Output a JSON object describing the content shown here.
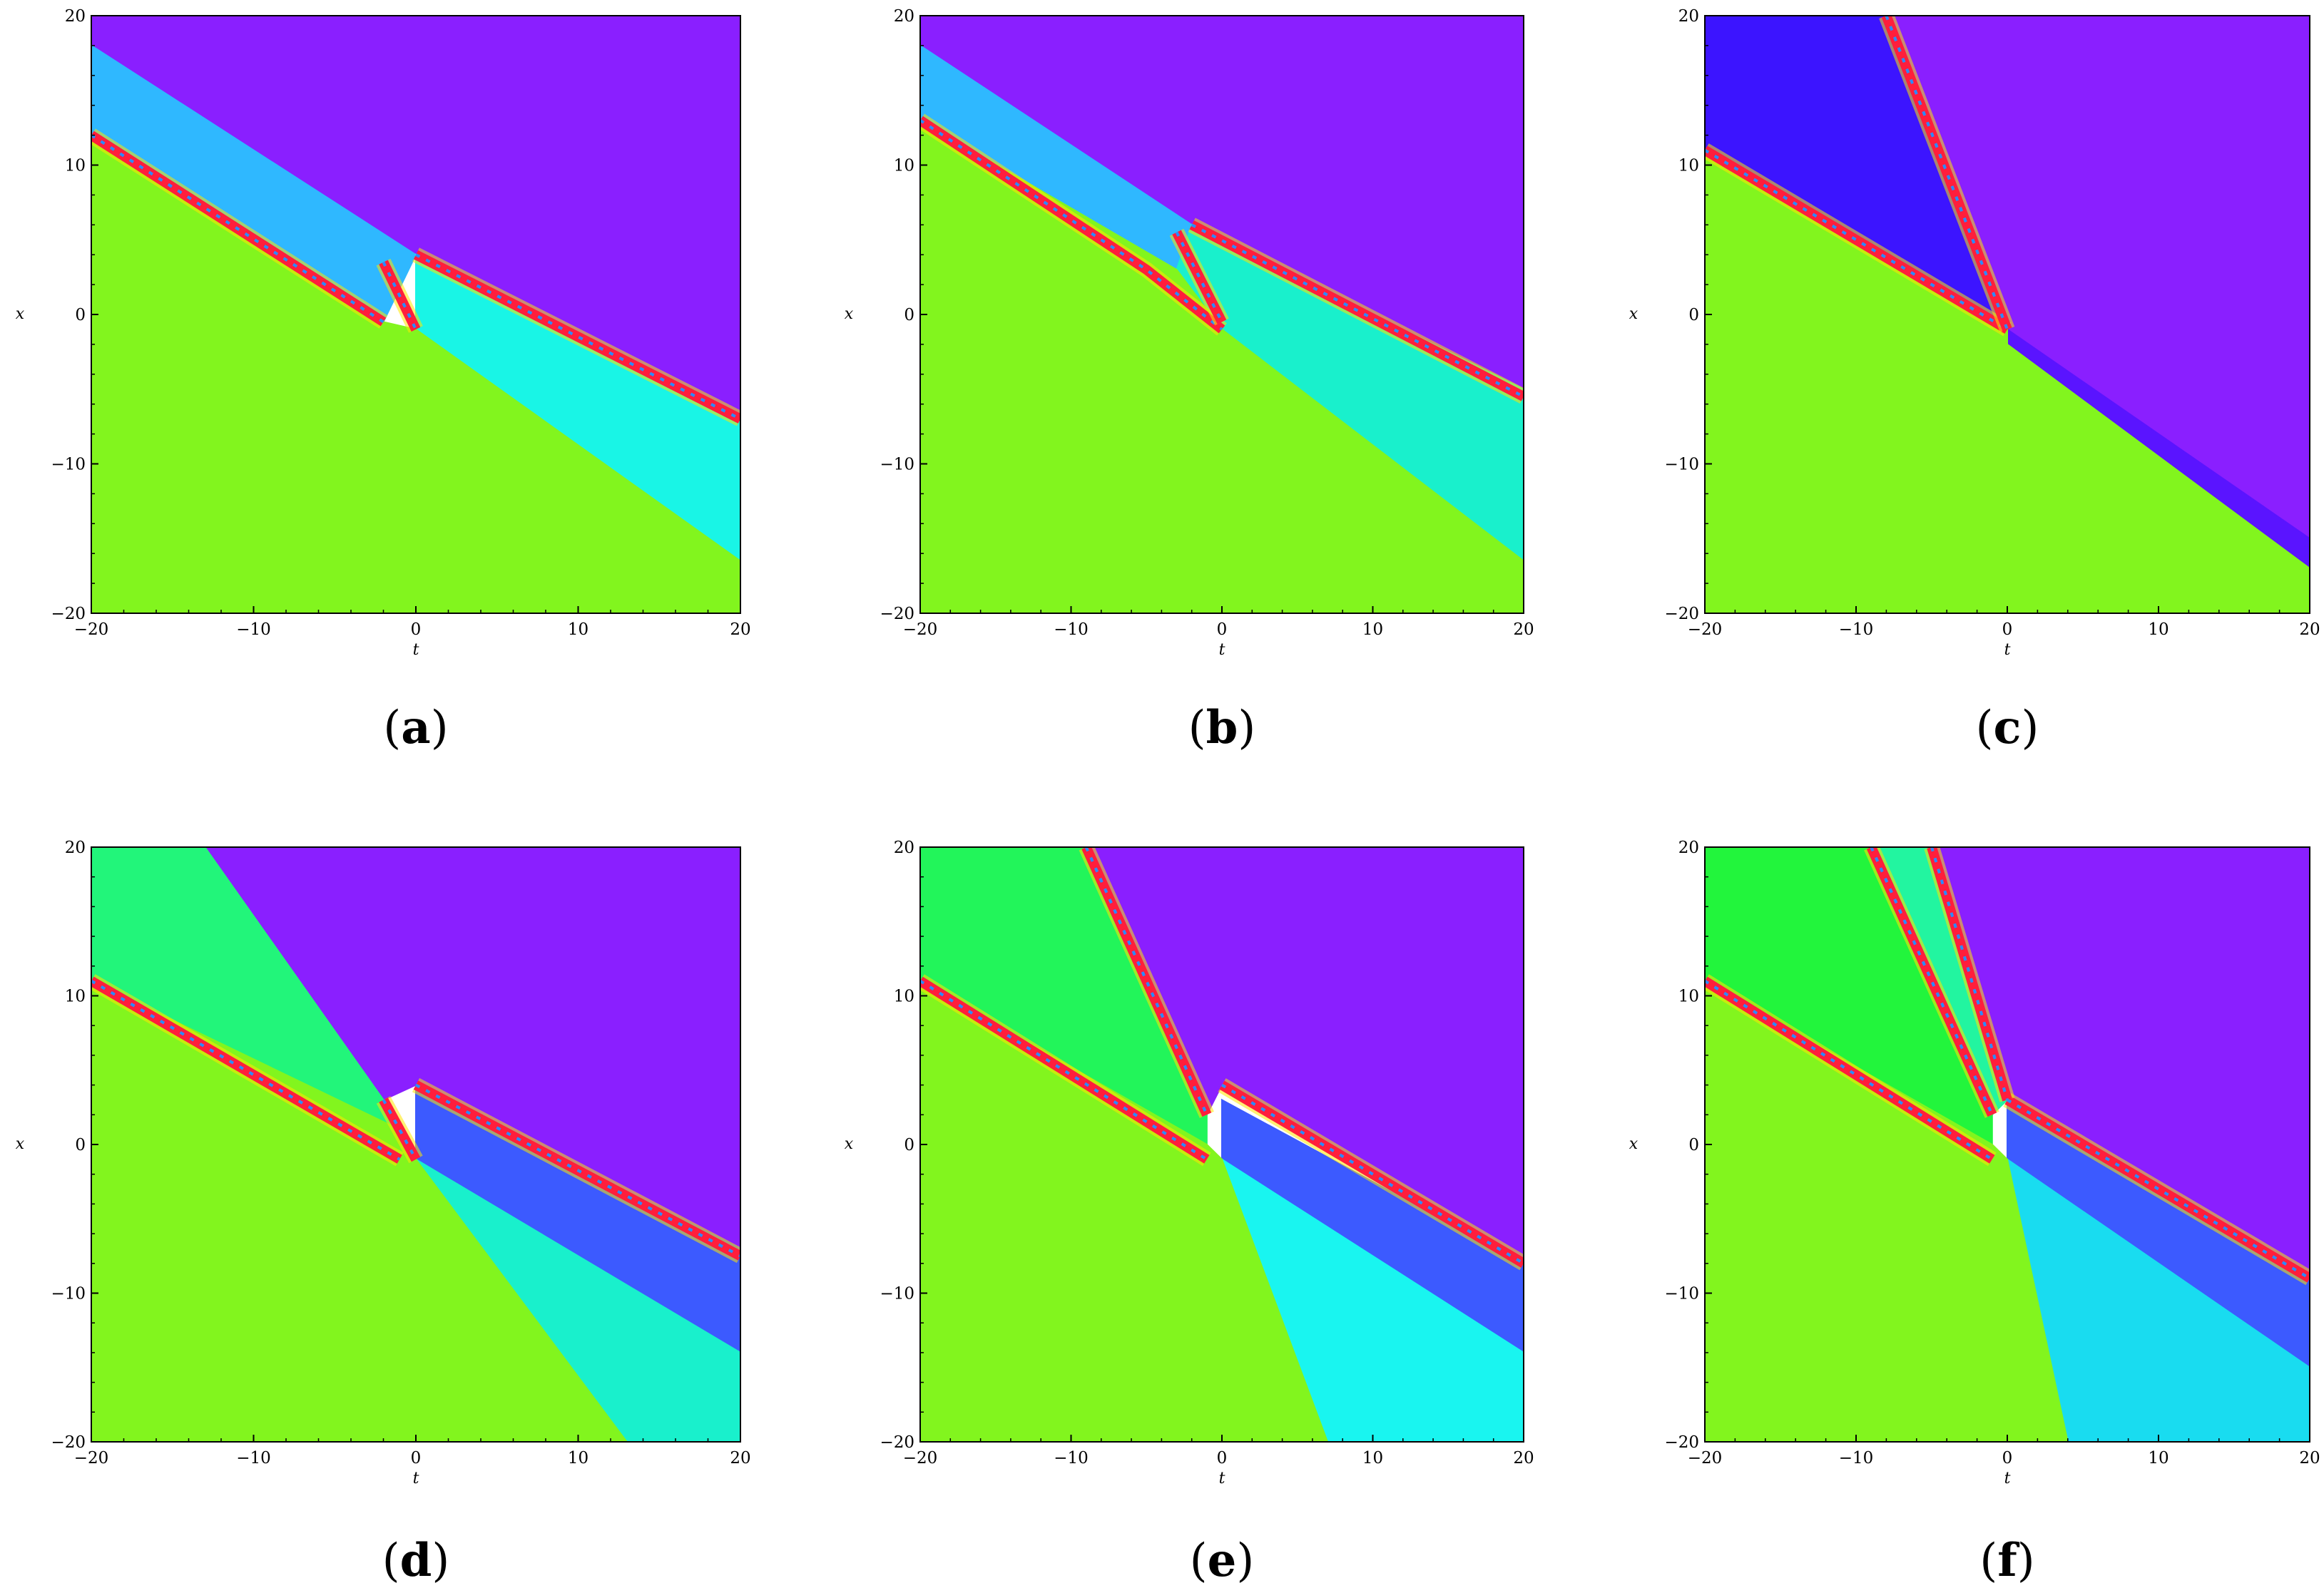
{
  "chart_data": [
    {
      "type": "heatmap",
      "caption": "(a)",
      "caption_letter": "a",
      "xlabel": "t",
      "ylabel": "x",
      "xlim": [
        -20,
        20
      ],
      "ylim": [
        -20,
        20
      ],
      "xticks": [
        "−20",
        "−10",
        "0",
        "10",
        "20"
      ],
      "yticks": [
        "20",
        "10",
        "0",
        "−10",
        "−20"
      ],
      "regions": [
        {
          "name": "violet",
          "color": "#8a1fff",
          "poly": [
            [
              -20,
              20
            ],
            [
              20,
              20
            ],
            [
              20,
              -7
            ],
            [
              0,
              4
            ],
            [
              -20,
              18
            ]
          ]
        },
        {
          "name": "blue-cyan",
          "color": "#2fb8ff",
          "poly": [
            [
              -20,
              18
            ],
            [
              0,
              4
            ],
            [
              -2,
              -0.5
            ],
            [
              -20,
              12
            ]
          ]
        },
        {
          "name": "cyan",
          "color": "#19f5e6",
          "poly": [
            [
              0,
              4
            ],
            [
              20,
              -7
            ],
            [
              20,
              -16.5
            ],
            [
              0,
              -1
            ]
          ]
        },
        {
          "name": "green",
          "color": "#82f51e",
          "poly": [
            [
              -20,
              12
            ],
            [
              -2,
              -0.5
            ],
            [
              0,
              -1
            ],
            [
              20,
              -16.5
            ],
            [
              20,
              -20
            ],
            [
              -20,
              -20
            ]
          ]
        }
      ],
      "boundaries": [
        {
          "color": "#ff1e3c",
          "points": [
            [
              -20,
              12
            ],
            [
              -2,
              -0.5
            ]
          ]
        },
        {
          "color": "#ff1e3c",
          "points": [
            [
              0,
              4
            ],
            [
              20,
              -7
            ]
          ]
        },
        {
          "color": "#ff1e3c",
          "points": [
            [
              -2,
              3.5
            ],
            [
              0,
              -1
            ]
          ]
        }
      ]
    },
    {
      "type": "heatmap",
      "caption": "(b)",
      "caption_letter": "b",
      "xlabel": "t",
      "ylabel": "x",
      "xlim": [
        -20,
        20
      ],
      "ylim": [
        -20,
        20
      ],
      "xticks": [
        "−20",
        "−10",
        "0",
        "10",
        "20"
      ],
      "yticks": [
        "20",
        "10",
        "0",
        "−10",
        "−20"
      ],
      "regions": [
        {
          "name": "violet",
          "color": "#8a1fff",
          "poly": [
            [
              -20,
              20
            ],
            [
              20,
              20
            ],
            [
              20,
              -5
            ],
            [
              -2,
              6
            ],
            [
              -20,
              18
            ]
          ]
        },
        {
          "name": "blue-cyan",
          "color": "#2fb8ff",
          "poly": [
            [
              -20,
              18
            ],
            [
              -2,
              6
            ],
            [
              -3,
              3
            ],
            [
              -20,
              13
            ]
          ]
        },
        {
          "name": "cyan",
          "color": "#19f0cc",
          "poly": [
            [
              -2,
              6
            ],
            [
              20,
              -5
            ],
            [
              20,
              -16.5
            ],
            [
              0,
              -1
            ],
            [
              -3,
              3
            ]
          ]
        },
        {
          "name": "green",
          "color": "#82f51e",
          "poly": [
            [
              -20,
              13
            ],
            [
              -3,
              3
            ],
            [
              0,
              -1
            ],
            [
              20,
              -16.5
            ],
            [
              20,
              -20
            ],
            [
              -20,
              -20
            ]
          ]
        }
      ],
      "boundaries": [
        {
          "color": "#ff1e3c",
          "points": [
            [
              -20,
              13
            ],
            [
              -5,
              3
            ],
            [
              0,
              -1
            ]
          ]
        },
        {
          "color": "#ff1e3c",
          "points": [
            [
              -2,
              6
            ],
            [
              20,
              -5.5
            ]
          ]
        },
        {
          "color": "#ff1e3c",
          "points": [
            [
              -3,
              5.5
            ],
            [
              0,
              -0.5
            ]
          ]
        }
      ]
    },
    {
      "type": "heatmap",
      "caption": "(c)",
      "caption_letter": "c",
      "xlabel": "t",
      "ylabel": "x",
      "xlim": [
        -20,
        20
      ],
      "ylim": [
        -20,
        20
      ],
      "xticks": [
        "−20",
        "−10",
        "0",
        "10",
        "20"
      ],
      "yticks": [
        "20",
        "10",
        "0",
        "−10",
        "−20"
      ],
      "regions": [
        {
          "name": "violet",
          "color": "#8a1fff",
          "poly": [
            [
              -8,
              20
            ],
            [
              20,
              20
            ],
            [
              20,
              -15
            ],
            [
              0,
              -1
            ]
          ]
        },
        {
          "name": "blue",
          "color": "#3c14ff",
          "poly": [
            [
              -20,
              20
            ],
            [
              -8,
              20
            ],
            [
              0,
              -1
            ],
            [
              -20,
              11
            ]
          ]
        },
        {
          "name": "indigo",
          "color": "#5a14ff",
          "poly": [
            [
              0,
              -1
            ],
            [
              20,
              -15
            ],
            [
              20,
              -17
            ],
            [
              0,
              -2
            ]
          ]
        },
        {
          "name": "green",
          "color": "#82f51e",
          "poly": [
            [
              -20,
              11
            ],
            [
              0,
              -1
            ],
            [
              0,
              -2
            ],
            [
              20,
              -17
            ],
            [
              20,
              -20
            ],
            [
              -20,
              -20
            ]
          ]
        }
      ],
      "boundaries": [
        {
          "color": "#ff1e3c",
          "points": [
            [
              -20,
              11
            ],
            [
              0,
              -1
            ]
          ]
        },
        {
          "color": "#ff1e3c",
          "points": [
            [
              -8,
              20
            ],
            [
              0,
              -1
            ]
          ]
        }
      ]
    },
    {
      "type": "heatmap",
      "caption": "(d)",
      "caption_letter": "d",
      "xlabel": "t",
      "ylabel": "x",
      "xlim": [
        -20,
        20
      ],
      "ylim": [
        -20,
        20
      ],
      "xticks": [
        "−20",
        "−10",
        "0",
        "10",
        "20"
      ],
      "yticks": [
        "20",
        "10",
        "0",
        "−10",
        "−20"
      ],
      "regions": [
        {
          "name": "violet",
          "color": "#8a1fff",
          "poly": [
            [
              -13,
              20
            ],
            [
              20,
              20
            ],
            [
              20,
              -7
            ],
            [
              0,
              4
            ],
            [
              -2,
              3
            ]
          ]
        },
        {
          "name": "green-top",
          "color": "#22f57a",
          "poly": [
            [
              -20,
              20
            ],
            [
              -13,
              20
            ],
            [
              -2,
              3
            ],
            [
              -1,
              1
            ],
            [
              -20,
              11
            ]
          ]
        },
        {
          "name": "blue",
          "color": "#3c5aff",
          "poly": [
            [
              0,
              4
            ],
            [
              20,
              -7
            ],
            [
              20,
              -14
            ],
            [
              0,
              -1
            ]
          ]
        },
        {
          "name": "cyan",
          "color": "#19f0cc",
          "poly": [
            [
              0,
              -1
            ],
            [
              20,
              -14
            ],
            [
              20,
              -20
            ],
            [
              13,
              -20
            ]
          ]
        },
        {
          "name": "green",
          "color": "#82f51e",
          "poly": [
            [
              -20,
              11
            ],
            [
              -1,
              1
            ],
            [
              0,
              -1
            ],
            [
              13,
              -20
            ],
            [
              -20,
              -20
            ]
          ]
        }
      ],
      "boundaries": [
        {
          "color": "#ff1e3c",
          "points": [
            [
              -20,
              11
            ],
            [
              -1,
              -1
            ]
          ]
        },
        {
          "color": "#ff1e3c",
          "points": [
            [
              0,
              4
            ],
            [
              20,
              -7.5
            ]
          ]
        },
        {
          "color": "#ff1e3c",
          "points": [
            [
              -2,
              3
            ],
            [
              0,
              -1
            ]
          ]
        }
      ]
    },
    {
      "type": "heatmap",
      "caption": "(e)",
      "caption_letter": "e",
      "xlabel": "t",
      "ylabel": "x",
      "xlim": [
        -20,
        20
      ],
      "ylim": [
        -20,
        20
      ],
      "xticks": [
        "−20",
        "−10",
        "0",
        "10",
        "20"
      ],
      "yticks": [
        "20",
        "10",
        "0",
        "−10",
        "−20"
      ],
      "regions": [
        {
          "name": "violet",
          "color": "#8a1fff",
          "poly": [
            [
              -9,
              20
            ],
            [
              20,
              20
            ],
            [
              20,
              -8
            ],
            [
              0,
              4
            ],
            [
              -1,
              2
            ]
          ]
        },
        {
          "name": "green-top",
          "color": "#22f55a",
          "poly": [
            [
              -20,
              20
            ],
            [
              -9,
              20
            ],
            [
              -1,
              2
            ],
            [
              -1,
              0
            ],
            [
              -20,
              11
            ]
          ]
        },
        {
          "name": "blue",
          "color": "#3c5aff",
          "poly": [
            [
              0,
              3
            ],
            [
              20,
              -8
            ],
            [
              20,
              -14
            ],
            [
              0,
              -1
            ]
          ]
        },
        {
          "name": "cyan",
          "color": "#19f5f0",
          "poly": [
            [
              0,
              -1
            ],
            [
              20,
              -14
            ],
            [
              20,
              -20
            ],
            [
              7,
              -20
            ]
          ]
        },
        {
          "name": "green",
          "color": "#82f51e",
          "poly": [
            [
              -20,
              11
            ],
            [
              -1,
              0
            ],
            [
              0,
              -1
            ],
            [
              7,
              -20
            ],
            [
              -20,
              -20
            ]
          ]
        }
      ],
      "boundaries": [
        {
          "color": "#ff1e3c",
          "points": [
            [
              -20,
              11
            ],
            [
              -1,
              -1
            ]
          ]
        },
        {
          "color": "#ff1e3c",
          "points": [
            [
              0,
              4
            ],
            [
              20,
              -8
            ]
          ]
        },
        {
          "color": "#ff1e3c",
          "points": [
            [
              -9,
              20
            ],
            [
              -1,
              2
            ]
          ]
        }
      ]
    },
    {
      "type": "heatmap",
      "caption": "(f)",
      "caption_letter": "f",
      "xlabel": "t",
      "ylabel": "x",
      "xlim": [
        -20,
        20
      ],
      "ylim": [
        -20,
        20
      ],
      "xticks": [
        "−20",
        "−10",
        "0",
        "10",
        "20"
      ],
      "yticks": [
        "20",
        "10",
        "0",
        "−10",
        "−20"
      ],
      "regions": [
        {
          "name": "violet",
          "color": "#8a1fff",
          "poly": [
            [
              -5,
              20
            ],
            [
              20,
              20
            ],
            [
              20,
              -9
            ],
            [
              0,
              3
            ]
          ]
        },
        {
          "name": "green-teal",
          "color": "#22f5a0",
          "poly": [
            [
              -9,
              20
            ],
            [
              -5,
              20
            ],
            [
              0,
              3
            ],
            [
              -1,
              2
            ]
          ]
        },
        {
          "name": "green-top",
          "color": "#22f53c",
          "poly": [
            [
              -20,
              20
            ],
            [
              -9,
              20
            ],
            [
              -1,
              2
            ],
            [
              -1,
              0
            ],
            [
              -20,
              11
            ]
          ]
        },
        {
          "name": "blue",
          "color": "#3c5aff",
          "poly": [
            [
              0,
              3
            ],
            [
              20,
              -9
            ],
            [
              20,
              -15
            ],
            [
              0,
              -1
            ]
          ]
        },
        {
          "name": "cyan",
          "color": "#19dcf0",
          "poly": [
            [
              0,
              -1
            ],
            [
              20,
              -15
            ],
            [
              20,
              -20
            ],
            [
              4,
              -20
            ]
          ]
        },
        {
          "name": "green",
          "color": "#82f51e",
          "poly": [
            [
              -20,
              11
            ],
            [
              -1,
              0
            ],
            [
              0,
              -1
            ],
            [
              4,
              -20
            ],
            [
              -20,
              -20
            ]
          ]
        }
      ],
      "boundaries": [
        {
          "color": "#ff1e3c",
          "points": [
            [
              -20,
              11
            ],
            [
              -1,
              -1
            ]
          ]
        },
        {
          "color": "#ff1e3c",
          "points": [
            [
              0,
              3
            ],
            [
              20,
              -9
            ]
          ]
        },
        {
          "color": "#ff1e3c",
          "points": [
            [
              -9,
              20
            ],
            [
              -1,
              2
            ]
          ]
        },
        {
          "color": "#ff1e3c",
          "points": [
            [
              -5,
              20
            ],
            [
              0,
              3
            ]
          ]
        }
      ]
    }
  ]
}
